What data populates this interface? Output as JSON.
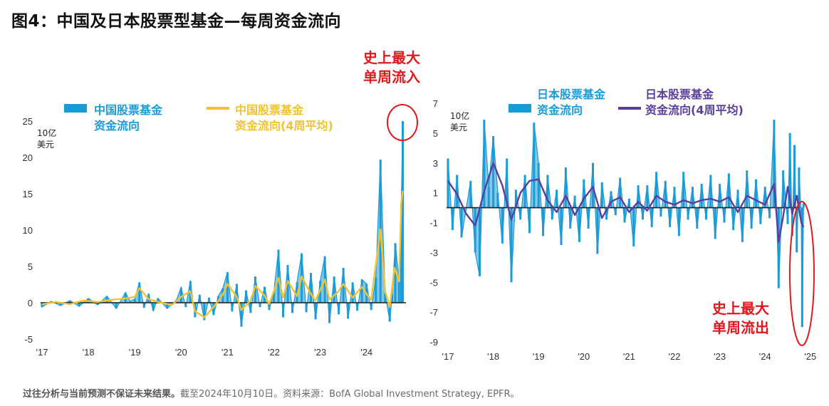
{
  "title": "图4：中国及日本股票型基金—每周资金流向",
  "footnote": {
    "bold": "过往分析与当前预测不保证未来结果。",
    "rest": "截至2024年10月10日。资料来源：BofA Global Investment Strategy, EPFR。"
  },
  "colors": {
    "china_weekly": "#1b9bd7",
    "china_avg": "#f2c230",
    "japan_weekly": "#1b9bd7",
    "japan_avg": "#5a3e9e",
    "annotation": "#e0191f",
    "axis": "#222222"
  },
  "chart_data": [
    {
      "type": "bar",
      "unit": [
        "10亿",
        "美元"
      ],
      "legend": [
        {
          "label_line1": "中国股票基金",
          "label_line2": "资金流向",
          "kind": "bar"
        },
        {
          "label_line1": "中国股票基金",
          "label_line2": "资金流向(4周平均)",
          "kind": "line"
        }
      ],
      "ylim": [
        -5,
        25
      ],
      "yticks": [
        25,
        20,
        15,
        10,
        5,
        0,
        -5
      ],
      "xticks": [
        "'17",
        "'18",
        "'19",
        "'20",
        "'21",
        "'22",
        "'23",
        "'24"
      ],
      "annotation": [
        "史上最大",
        "单周流入"
      ],
      "series": [
        {
          "name": "中国股票基金资金流向",
          "points": [
            [
              2017.0,
              -0.6
            ],
            [
              2017.2,
              0.2
            ],
            [
              2017.4,
              -0.4
            ],
            [
              2017.6,
              0.3
            ],
            [
              2017.8,
              -0.5
            ],
            [
              2018.0,
              0.6
            ],
            [
              2018.2,
              -0.3
            ],
            [
              2018.4,
              0.9
            ],
            [
              2018.6,
              -0.8
            ],
            [
              2018.8,
              1.4
            ],
            [
              2018.9,
              0.2
            ],
            [
              2019.0,
              0.5
            ],
            [
              2019.1,
              2.8
            ],
            [
              2019.2,
              -0.7
            ],
            [
              2019.3,
              1.2
            ],
            [
              2019.4,
              -1.1
            ],
            [
              2019.5,
              0.6
            ],
            [
              2019.7,
              -0.8
            ],
            [
              2019.9,
              0.4
            ],
            [
              2020.0,
              2.1
            ],
            [
              2020.1,
              -0.6
            ],
            [
              2020.2,
              3.0
            ],
            [
              2020.3,
              -2.0
            ],
            [
              2020.4,
              1.1
            ],
            [
              2020.5,
              -2.4
            ],
            [
              2020.6,
              0.7
            ],
            [
              2020.7,
              -1.7
            ],
            [
              2020.8,
              0.9
            ],
            [
              2020.9,
              2.0
            ],
            [
              2021.0,
              4.2
            ],
            [
              2021.1,
              -1.2
            ],
            [
              2021.2,
              2.6
            ],
            [
              2021.3,
              -3.3
            ],
            [
              2021.4,
              1.7
            ],
            [
              2021.5,
              -1.4
            ],
            [
              2021.6,
              3.6
            ],
            [
              2021.7,
              -0.6
            ],
            [
              2021.8,
              2.2
            ],
            [
              2021.9,
              -1.0
            ],
            [
              2022.0,
              1.5
            ],
            [
              2022.1,
              7.3
            ],
            [
              2022.2,
              -2.0
            ],
            [
              2022.3,
              5.2
            ],
            [
              2022.4,
              -1.4
            ],
            [
              2022.5,
              2.8
            ],
            [
              2022.6,
              6.8
            ],
            [
              2022.7,
              -1.3
            ],
            [
              2022.8,
              4.1
            ],
            [
              2022.9,
              -2.3
            ],
            [
              2023.0,
              3.0
            ],
            [
              2023.1,
              6.4
            ],
            [
              2023.2,
              -2.8
            ],
            [
              2023.3,
              3.6
            ],
            [
              2023.4,
              -1.6
            ],
            [
              2023.5,
              4.8
            ],
            [
              2023.6,
              -2.2
            ],
            [
              2023.7,
              2.8
            ],
            [
              2023.8,
              -1.1
            ],
            [
              2023.9,
              3.2
            ],
            [
              2024.0,
              2.6
            ],
            [
              2024.1,
              -1.0
            ],
            [
              2024.2,
              3.5
            ],
            [
              2024.3,
              19.7
            ],
            [
              2024.4,
              1.3
            ],
            [
              2024.5,
              -2.6
            ],
            [
              2024.55,
              1.2
            ],
            [
              2024.62,
              8.2
            ],
            [
              2024.7,
              3.0
            ],
            [
              2024.75,
              13.6
            ],
            [
              2024.78,
              25.0
            ]
          ]
        },
        {
          "name": "中国股票基金资金流向(4周平均)",
          "points": [
            [
              2017.0,
              -0.2
            ],
            [
              2017.3,
              0.1
            ],
            [
              2017.6,
              -0.2
            ],
            [
              2017.9,
              0.3
            ],
            [
              2018.2,
              0.1
            ],
            [
              2018.5,
              0.4
            ],
            [
              2018.8,
              0.6
            ],
            [
              2019.0,
              0.8
            ],
            [
              2019.1,
              2.0
            ],
            [
              2019.3,
              0.5
            ],
            [
              2019.5,
              0.1
            ],
            [
              2019.8,
              -0.3
            ],
            [
              2020.0,
              0.8
            ],
            [
              2020.2,
              1.6
            ],
            [
              2020.3,
              -1.2
            ],
            [
              2020.5,
              -2.0
            ],
            [
              2020.7,
              -0.6
            ],
            [
              2020.9,
              1.1
            ],
            [
              2021.0,
              2.6
            ],
            [
              2021.2,
              0.8
            ],
            [
              2021.3,
              -1.0
            ],
            [
              2021.5,
              0.3
            ],
            [
              2021.6,
              2.3
            ],
            [
              2021.8,
              1.0
            ],
            [
              2021.9,
              -0.2
            ],
            [
              2022.1,
              3.4
            ],
            [
              2022.2,
              0.7
            ],
            [
              2022.3,
              3.0
            ],
            [
              2022.5,
              0.9
            ],
            [
              2022.6,
              3.6
            ],
            [
              2022.8,
              1.2
            ],
            [
              2022.9,
              0.3
            ],
            [
              2023.1,
              3.2
            ],
            [
              2023.2,
              0.4
            ],
            [
              2023.4,
              1.6
            ],
            [
              2023.5,
              2.6
            ],
            [
              2023.7,
              0.7
            ],
            [
              2023.9,
              2.2
            ],
            [
              2024.0,
              1.2
            ],
            [
              2024.1,
              0.4
            ],
            [
              2024.3,
              10.1
            ],
            [
              2024.4,
              1.6
            ],
            [
              2024.5,
              -0.6
            ],
            [
              2024.6,
              4.8
            ],
            [
              2024.7,
              2.9
            ],
            [
              2024.75,
              13.8
            ],
            [
              2024.78,
              15.4
            ]
          ]
        }
      ]
    },
    {
      "type": "bar",
      "unit": [
        "10亿",
        "美元"
      ],
      "legend": [
        {
          "label_line1": "日本股票基金",
          "label_line2": "资金流向",
          "kind": "bar"
        },
        {
          "label_line1": "日本股票基金",
          "label_line2": "资金流向(4周平均)",
          "kind": "line"
        }
      ],
      "ylim": [
        -9,
        7
      ],
      "yticks": [
        7,
        5,
        3,
        1,
        -1,
        -3,
        -5,
        -7,
        -9
      ],
      "xticks": [
        "'17",
        "'18",
        "'19",
        "'20",
        "'21",
        "'22",
        "'23",
        "'24",
        "'25"
      ],
      "annotation": [
        "史上最大",
        "单周流出"
      ],
      "series": [
        {
          "name": "日本股票基金资金流向",
          "points": [
            [
              2017.0,
              3.3
            ],
            [
              2017.1,
              -1.5
            ],
            [
              2017.2,
              2.2
            ],
            [
              2017.3,
              -2.0
            ],
            [
              2017.5,
              1.8
            ],
            [
              2017.6,
              -3.0
            ],
            [
              2017.7,
              -4.6
            ],
            [
              2017.8,
              5.9
            ],
            [
              2017.9,
              1.4
            ],
            [
              2018.0,
              4.8
            ],
            [
              2018.1,
              1.0
            ],
            [
              2018.2,
              -2.4
            ],
            [
              2018.3,
              3.3
            ],
            [
              2018.4,
              -5.0
            ],
            [
              2018.5,
              1.2
            ],
            [
              2018.6,
              -0.8
            ],
            [
              2018.7,
              2.2
            ],
            [
              2018.8,
              -1.7
            ],
            [
              2018.9,
              5.7
            ],
            [
              2019.0,
              3.0
            ],
            [
              2019.1,
              -1.9
            ],
            [
              2019.2,
              2.2
            ],
            [
              2019.3,
              -0.8
            ],
            [
              2019.4,
              1.2
            ],
            [
              2019.5,
              -2.5
            ],
            [
              2019.6,
              2.7
            ],
            [
              2019.7,
              -1.4
            ],
            [
              2019.8,
              0.8
            ],
            [
              2019.9,
              -2.3
            ],
            [
              2020.0,
              1.9
            ],
            [
              2020.1,
              -1.4
            ],
            [
              2020.2,
              3.0
            ],
            [
              2020.3,
              -3.1
            ],
            [
              2020.4,
              1.7
            ],
            [
              2020.5,
              -0.8
            ],
            [
              2020.6,
              1.1
            ],
            [
              2020.7,
              -0.5
            ],
            [
              2020.8,
              2.0
            ],
            [
              2020.9,
              -1.0
            ],
            [
              2021.0,
              0.6
            ],
            [
              2021.1,
              -2.6
            ],
            [
              2021.2,
              1.5
            ],
            [
              2021.3,
              -0.8
            ],
            [
              2021.4,
              1.5
            ],
            [
              2021.5,
              -1.3
            ],
            [
              2021.6,
              2.4
            ],
            [
              2021.7,
              -0.6
            ],
            [
              2021.8,
              1.8
            ],
            [
              2021.9,
              -1.3
            ],
            [
              2022.0,
              1.4
            ],
            [
              2022.1,
              -1.9
            ],
            [
              2022.2,
              2.4
            ],
            [
              2022.3,
              -0.8
            ],
            [
              2022.4,
              1.4
            ],
            [
              2022.5,
              -1.4
            ],
            [
              2022.6,
              1.6
            ],
            [
              2022.7,
              -0.8
            ],
            [
              2022.8,
              2.2
            ],
            [
              2022.9,
              -2.1
            ],
            [
              2023.0,
              1.6
            ],
            [
              2023.1,
              -1.0
            ],
            [
              2023.2,
              2.3
            ],
            [
              2023.3,
              -1.5
            ],
            [
              2023.4,
              1.2
            ],
            [
              2023.5,
              -2.3
            ],
            [
              2023.6,
              2.5
            ],
            [
              2023.7,
              -1.4
            ],
            [
              2023.8,
              1.9
            ],
            [
              2023.9,
              -1.1
            ],
            [
              2024.0,
              1.4
            ],
            [
              2024.1,
              -0.7
            ],
            [
              2024.2,
              5.9
            ],
            [
              2024.3,
              -5.4
            ],
            [
              2024.4,
              2.5
            ],
            [
              2024.5,
              -1.1
            ],
            [
              2024.55,
              5.0
            ],
            [
              2024.6,
              -1.9
            ],
            [
              2024.65,
              4.2
            ],
            [
              2024.7,
              -3.0
            ],
            [
              2024.75,
              2.7
            ],
            [
              2024.8,
              -0.9
            ],
            [
              2024.82,
              -8.0
            ],
            [
              2024.85,
              0.3
            ]
          ]
        },
        {
          "name": "日本股票基金资金流向(4周平均)",
          "points": [
            [
              2017.0,
              1.8
            ],
            [
              2017.2,
              0.9
            ],
            [
              2017.4,
              -0.4
            ],
            [
              2017.6,
              -1.2
            ],
            [
              2017.8,
              1.1
            ],
            [
              2018.0,
              3.0
            ],
            [
              2018.2,
              1.5
            ],
            [
              2018.4,
              -0.8
            ],
            [
              2018.6,
              1.0
            ],
            [
              2018.8,
              1.8
            ],
            [
              2019.0,
              1.9
            ],
            [
              2019.2,
              0.5
            ],
            [
              2019.4,
              -0.3
            ],
            [
              2019.6,
              0.8
            ],
            [
              2019.8,
              -0.5
            ],
            [
              2020.0,
              0.6
            ],
            [
              2020.2,
              1.4
            ],
            [
              2020.4,
              -0.7
            ],
            [
              2020.6,
              0.4
            ],
            [
              2020.8,
              0.7
            ],
            [
              2021.0,
              -0.3
            ],
            [
              2021.2,
              0.4
            ],
            [
              2021.4,
              -0.2
            ],
            [
              2021.6,
              0.8
            ],
            [
              2021.8,
              0.4
            ],
            [
              2022.0,
              0.2
            ],
            [
              2022.2,
              0.5
            ],
            [
              2022.4,
              0.3
            ],
            [
              2022.6,
              0.5
            ],
            [
              2022.8,
              0.6
            ],
            [
              2023.0,
              0.4
            ],
            [
              2023.2,
              0.7
            ],
            [
              2023.4,
              -0.3
            ],
            [
              2023.6,
              0.8
            ],
            [
              2023.8,
              0.5
            ],
            [
              2024.0,
              0.2
            ],
            [
              2024.2,
              1.6
            ],
            [
              2024.3,
              -2.3
            ],
            [
              2024.4,
              -0.6
            ],
            [
              2024.5,
              1.4
            ],
            [
              2024.6,
              -0.4
            ],
            [
              2024.7,
              0.8
            ],
            [
              2024.8,
              -1.0
            ],
            [
              2024.85,
              -1.3
            ]
          ]
        }
      ]
    }
  ]
}
